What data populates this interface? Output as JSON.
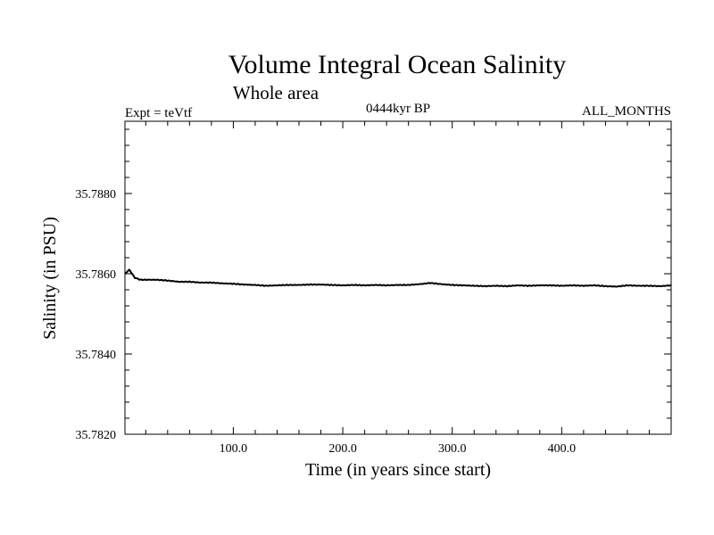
{
  "chart_data": {
    "type": "line",
    "title": "Volume Integral Ocean Salinity",
    "subtitle": "Whole area",
    "expt_label": "Expt = teVtf",
    "period_label": "0444kyr BP",
    "months_label": "ALL_MONTHS",
    "xlabel": "Time (in years since start)",
    "ylabel": "Salinity (in PSU)",
    "xlim": [
      1,
      500
    ],
    "ylim": [
      35.782,
      35.7898
    ],
    "x_ticks": [
      100,
      200,
      300,
      400
    ],
    "x_tick_labels": [
      "100.0",
      "200.0",
      "300.0",
      "400.0"
    ],
    "y_ticks": [
      35.782,
      35.784,
      35.786,
      35.788
    ],
    "y_tick_labels": [
      "35.7820",
      "35.7840",
      "35.7860",
      "35.7880"
    ],
    "grid": false,
    "series": [
      {
        "x": [
          1,
          5,
          10,
          15,
          20,
          30,
          40,
          50,
          60,
          70,
          80,
          90,
          100,
          110,
          120,
          130,
          140,
          150,
          160,
          170,
          180,
          190,
          200,
          210,
          220,
          230,
          240,
          250,
          260,
          270,
          280,
          290,
          300,
          310,
          320,
          330,
          340,
          350,
          360,
          370,
          380,
          390,
          400,
          410,
          420,
          430,
          440,
          450,
          460,
          470,
          480,
          490,
          500
        ],
        "y": [
          35.786,
          35.7861,
          35.7859,
          35.78585,
          35.78585,
          35.78585,
          35.78583,
          35.7858,
          35.7858,
          35.78578,
          35.78578,
          35.78576,
          35.78575,
          35.78573,
          35.78572,
          35.7857,
          35.78571,
          35.78572,
          35.78572,
          35.78573,
          35.78573,
          35.78572,
          35.78571,
          35.78572,
          35.78571,
          35.78572,
          35.78571,
          35.78572,
          35.78572,
          35.78574,
          35.78577,
          35.78574,
          35.78572,
          35.78571,
          35.7857,
          35.78569,
          35.7857,
          35.78569,
          35.78571,
          35.7857,
          35.78571,
          35.78571,
          35.7857,
          35.78571,
          35.7857,
          35.78571,
          35.78569,
          35.78568,
          35.78571,
          35.7857,
          35.7857,
          35.78569,
          35.78571
        ]
      }
    ]
  }
}
